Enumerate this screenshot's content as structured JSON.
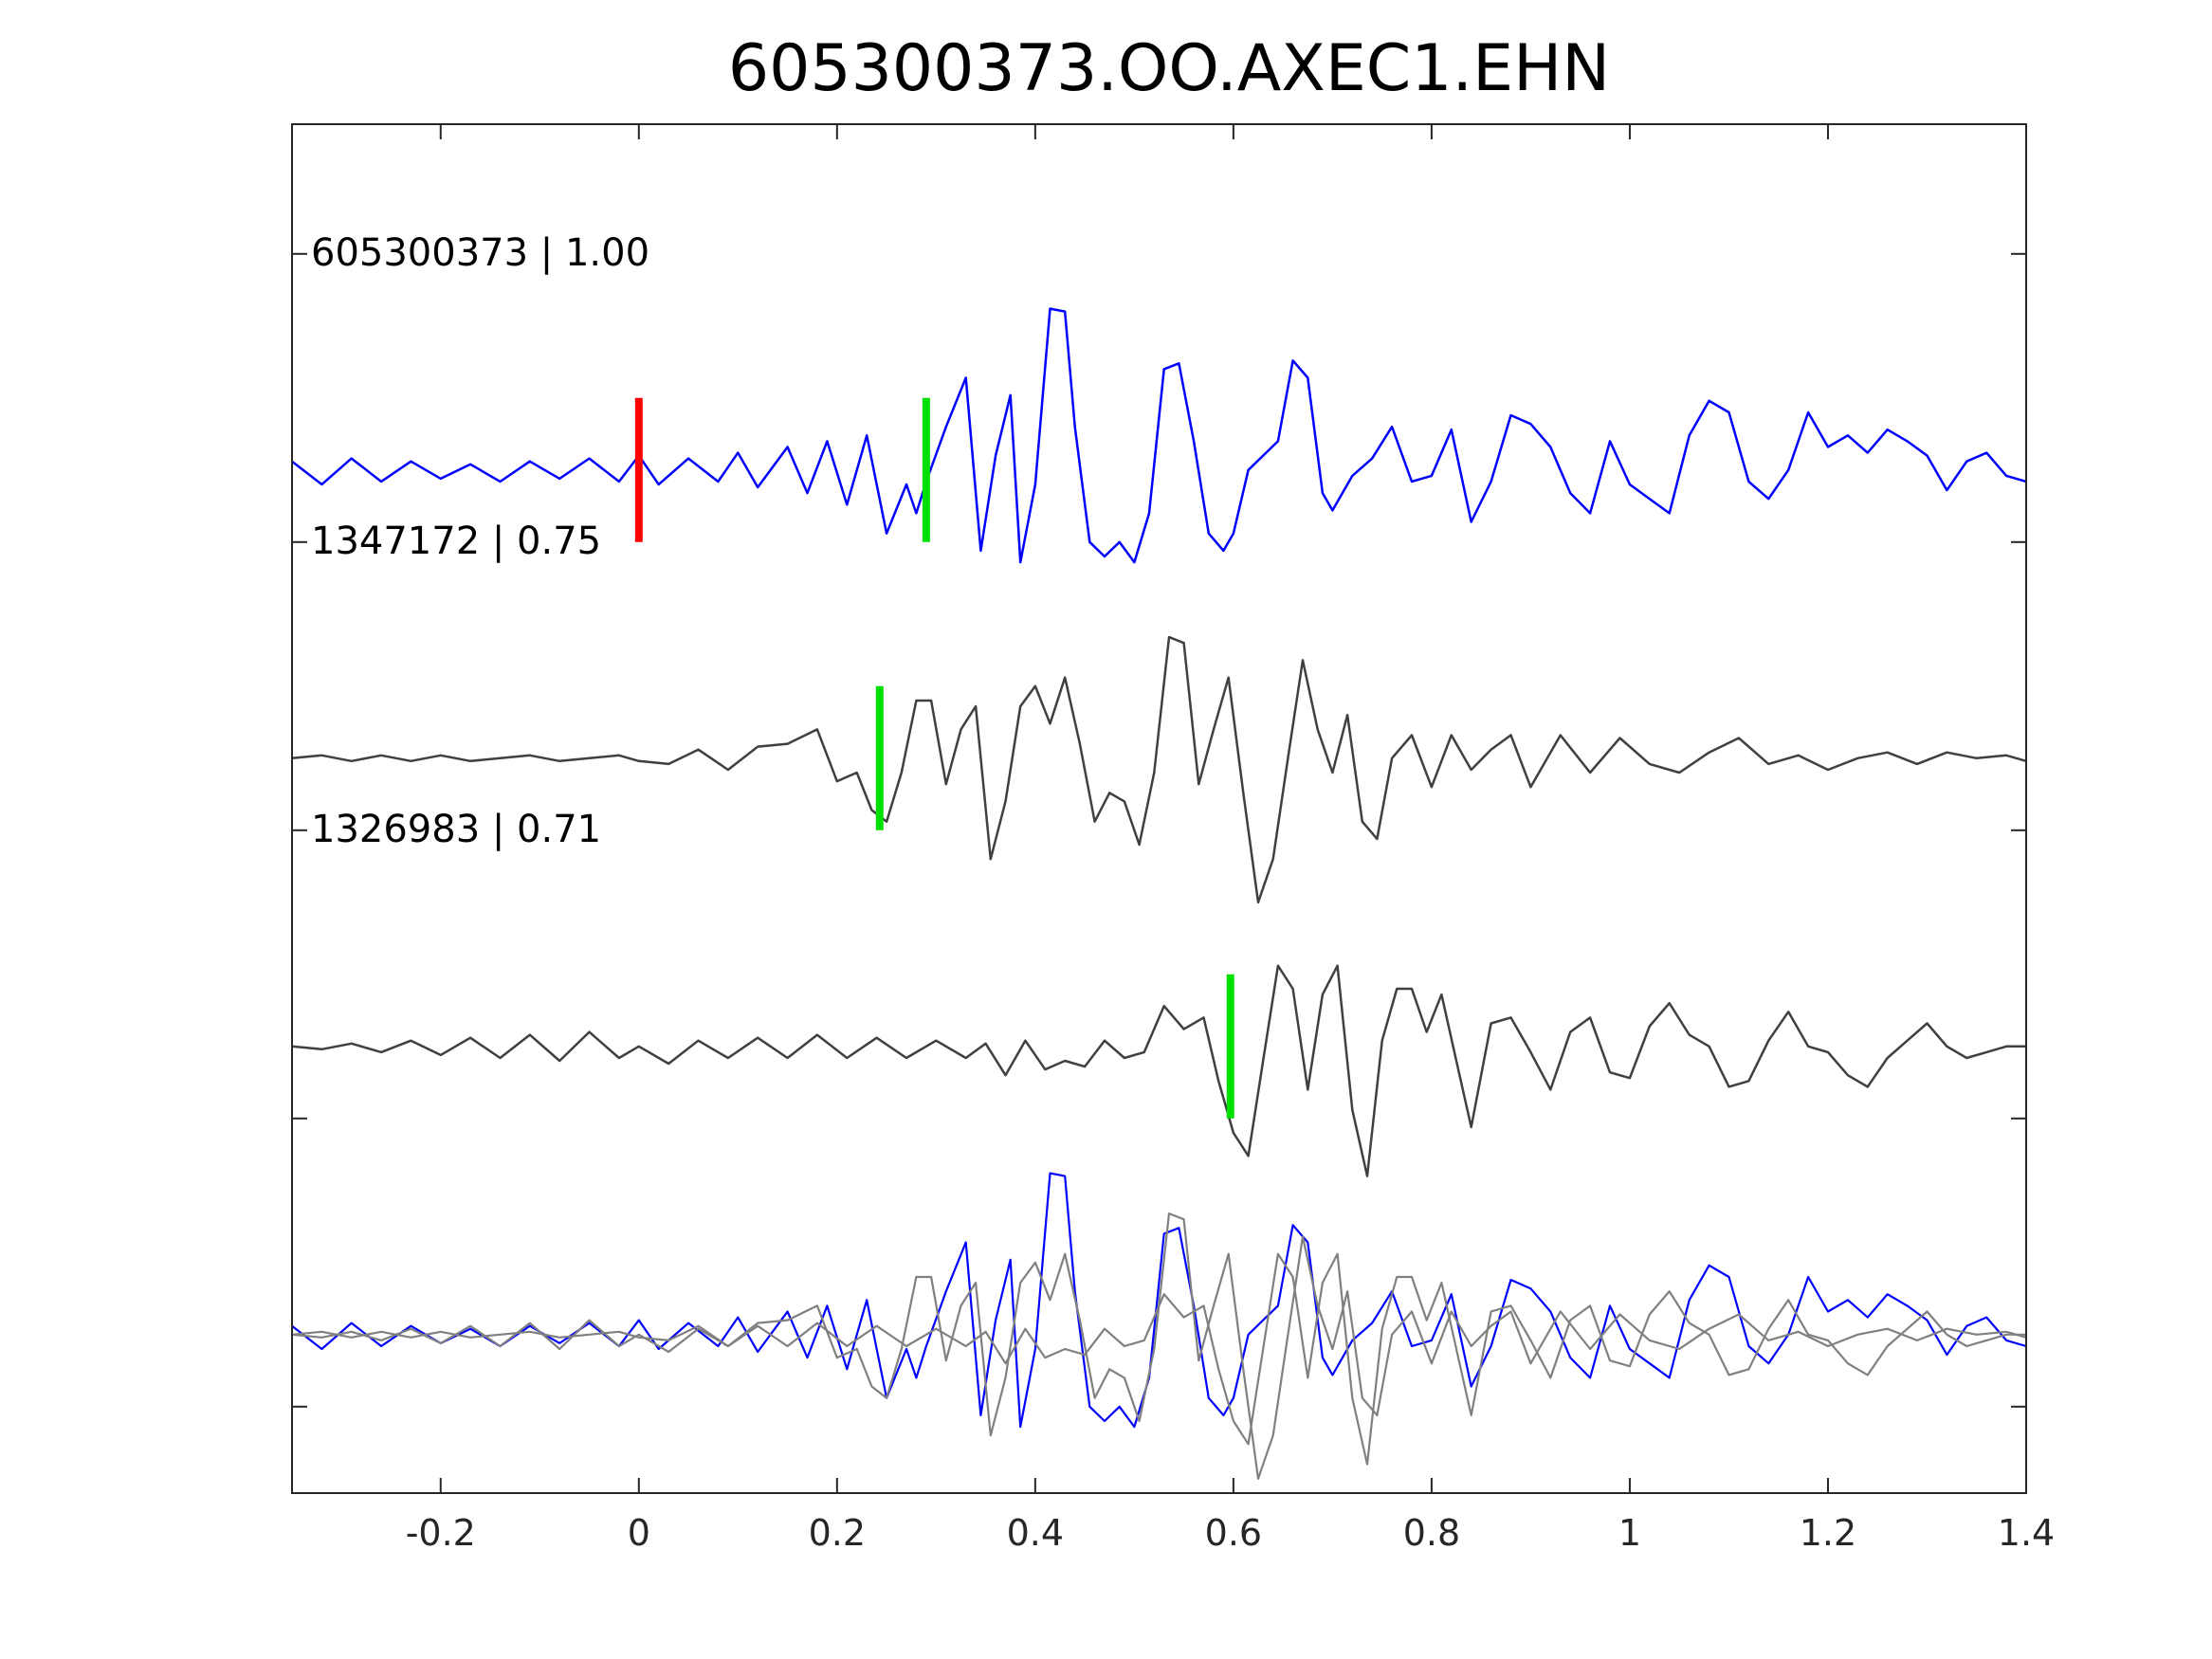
{
  "chart_data": {
    "type": "line",
    "title": "605300373.OO.AXEC1.EHN",
    "xlabel": "",
    "ylabel": "",
    "xlim": [
      -0.35,
      1.4
    ],
    "ylim": [
      0.45,
      5.2
    ],
    "xticks": [
      -0.2,
      0,
      0.2,
      0.4,
      0.6,
      0.8,
      1,
      1.2,
      1.4
    ],
    "xtick_labels": [
      "-0.2",
      "0",
      "0.2",
      "0.4",
      "0.6",
      "0.8",
      "1",
      "1.2",
      "1.4"
    ],
    "yticks": [
      0.75,
      1.75,
      2.75,
      3.75,
      4.75
    ],
    "grid": false,
    "colors": {
      "reference": "#0000ff",
      "match": "#404040",
      "overlay_match": "#808080",
      "origin_marker": "#ff0000",
      "pick_marker": "#00e000"
    },
    "series": [
      {
        "label": "605300373 | 1.00",
        "baseline": 4.0,
        "color": "#0000ff",
        "pick": 0.29,
        "origin_marker": 0.0,
        "x": [
          -0.35,
          -0.32,
          -0.29,
          -0.26,
          -0.23,
          -0.2,
          -0.17,
          -0.14,
          -0.11,
          -0.08,
          -0.05,
          -0.02,
          0.0,
          0.02,
          0.05,
          0.08,
          0.1,
          0.12,
          0.15,
          0.17,
          0.19,
          0.21,
          0.23,
          0.25,
          0.27,
          0.28,
          0.29,
          0.31,
          0.33,
          0.345,
          0.36,
          0.375,
          0.385,
          0.4,
          0.415,
          0.43,
          0.44,
          0.455,
          0.47,
          0.485,
          0.5,
          0.515,
          0.53,
          0.545,
          0.56,
          0.575,
          0.59,
          0.6,
          0.615,
          0.63,
          0.645,
          0.66,
          0.675,
          0.69,
          0.7,
          0.72,
          0.74,
          0.76,
          0.78,
          0.8,
          0.82,
          0.84,
          0.86,
          0.88,
          0.9,
          0.92,
          0.94,
          0.96,
          0.98,
          1.0,
          1.02,
          1.04,
          1.06,
          1.08,
          1.1,
          1.12,
          1.14,
          1.16,
          1.18,
          1.2,
          1.22,
          1.24,
          1.26,
          1.28,
          1.3,
          1.32,
          1.34,
          1.36,
          1.38,
          1.4
        ],
        "y": [
          4.03,
          3.95,
          4.04,
          3.96,
          4.03,
          3.97,
          4.02,
          3.96,
          4.03,
          3.97,
          4.04,
          3.96,
          4.05,
          3.95,
          4.04,
          3.96,
          4.06,
          3.94,
          4.08,
          3.92,
          4.1,
          3.88,
          4.12,
          3.78,
          3.95,
          3.85,
          3.96,
          4.15,
          4.32,
          3.72,
          4.05,
          4.26,
          3.68,
          3.95,
          4.56,
          4.55,
          4.15,
          3.75,
          3.7,
          3.75,
          3.68,
          3.85,
          4.35,
          4.37,
          4.1,
          3.78,
          3.72,
          3.78,
          4.0,
          4.05,
          4.1,
          4.38,
          4.32,
          3.92,
          3.86,
          3.98,
          4.04,
          4.15,
          3.96,
          3.98,
          4.14,
          3.82,
          3.96,
          4.19,
          4.16,
          4.08,
          3.92,
          3.85,
          4.1,
          3.95,
          3.9,
          3.85,
          4.12,
          4.24,
          4.2,
          3.96,
          3.9,
          4.0,
          4.2,
          4.08,
          4.12,
          4.06,
          4.14,
          4.1,
          4.05,
          3.93,
          4.03,
          4.06,
          3.98,
          3.96
        ]
      },
      {
        "label": "1347172 | 0.75",
        "baseline": 3.0,
        "color": "#404040",
        "pick": 0.243,
        "x": [
          -0.35,
          -0.32,
          -0.29,
          -0.26,
          -0.23,
          -0.2,
          -0.17,
          -0.14,
          -0.11,
          -0.08,
          -0.05,
          -0.02,
          0.0,
          0.03,
          0.06,
          0.09,
          0.12,
          0.15,
          0.18,
          0.2,
          0.22,
          0.235,
          0.25,
          0.265,
          0.28,
          0.295,
          0.31,
          0.325,
          0.34,
          0.355,
          0.37,
          0.385,
          0.4,
          0.415,
          0.43,
          0.445,
          0.46,
          0.475,
          0.49,
          0.505,
          0.52,
          0.535,
          0.55,
          0.565,
          0.58,
          0.595,
          0.61,
          0.625,
          0.64,
          0.655,
          0.67,
          0.685,
          0.7,
          0.715,
          0.73,
          0.745,
          0.76,
          0.78,
          0.8,
          0.82,
          0.84,
          0.86,
          0.88,
          0.9,
          0.93,
          0.96,
          0.99,
          1.02,
          1.05,
          1.08,
          1.11,
          1.14,
          1.17,
          1.2,
          1.23,
          1.26,
          1.29,
          1.32,
          1.35,
          1.38,
          1.4
        ],
        "y": [
          3.0,
          3.01,
          2.99,
          3.01,
          2.99,
          3.01,
          2.99,
          3.0,
          3.01,
          2.99,
          3.0,
          3.01,
          2.99,
          2.98,
          3.03,
          2.96,
          3.04,
          3.05,
          3.1,
          2.92,
          2.95,
          2.82,
          2.78,
          2.95,
          3.2,
          3.2,
          2.91,
          3.1,
          3.18,
          2.65,
          2.85,
          3.18,
          3.25,
          3.12,
          3.28,
          3.05,
          2.78,
          2.88,
          2.85,
          2.7,
          2.95,
          3.42,
          3.4,
          2.91,
          3.1,
          3.28,
          2.88,
          2.5,
          2.65,
          3.0,
          3.34,
          3.1,
          2.95,
          3.15,
          2.78,
          2.72,
          3.0,
          3.08,
          2.9,
          3.08,
          2.96,
          3.03,
          3.08,
          2.9,
          3.08,
          2.95,
          3.07,
          2.98,
          2.95,
          3.02,
          3.07,
          2.98,
          3.01,
          2.96,
          3.0,
          3.02,
          2.98,
          3.02,
          3.0,
          3.01,
          2.99
        ]
      },
      {
        "label": "1326983 | 0.71",
        "baseline": 2.0,
        "color": "#404040",
        "pick": 0.597,
        "x": [
          -0.35,
          -0.32,
          -0.29,
          -0.26,
          -0.23,
          -0.2,
          -0.17,
          -0.14,
          -0.11,
          -0.08,
          -0.05,
          -0.02,
          0.0,
          0.03,
          0.06,
          0.09,
          0.12,
          0.15,
          0.18,
          0.21,
          0.24,
          0.27,
          0.3,
          0.33,
          0.35,
          0.37,
          0.39,
          0.41,
          0.43,
          0.45,
          0.47,
          0.49,
          0.51,
          0.53,
          0.55,
          0.57,
          0.585,
          0.6,
          0.615,
          0.63,
          0.645,
          0.66,
          0.675,
          0.69,
          0.705,
          0.72,
          0.735,
          0.75,
          0.765,
          0.78,
          0.795,
          0.81,
          0.825,
          0.84,
          0.86,
          0.88,
          0.9,
          0.92,
          0.94,
          0.96,
          0.98,
          1.0,
          1.02,
          1.04,
          1.06,
          1.08,
          1.1,
          1.12,
          1.14,
          1.16,
          1.18,
          1.2,
          1.22,
          1.24,
          1.26,
          1.28,
          1.3,
          1.32,
          1.34,
          1.36,
          1.38,
          1.4
        ],
        "y": [
          2.0,
          1.99,
          2.01,
          1.98,
          2.02,
          1.97,
          2.03,
          1.96,
          2.04,
          1.95,
          2.05,
          1.96,
          2.0,
          1.94,
          2.02,
          1.96,
          2.03,
          1.96,
          2.04,
          1.96,
          2.03,
          1.96,
          2.02,
          1.96,
          2.01,
          1.9,
          2.02,
          1.92,
          1.95,
          1.93,
          2.02,
          1.96,
          1.98,
          2.14,
          2.06,
          2.1,
          1.88,
          1.7,
          1.62,
          1.95,
          2.28,
          2.2,
          1.85,
          2.18,
          2.28,
          1.78,
          1.55,
          2.02,
          2.2,
          2.2,
          2.05,
          2.18,
          1.95,
          1.72,
          2.08,
          2.1,
          1.98,
          1.85,
          2.05,
          2.1,
          1.91,
          1.89,
          2.07,
          2.15,
          2.04,
          2.0,
          1.86,
          1.88,
          2.02,
          2.12,
          2.0,
          1.98,
          1.9,
          1.86,
          1.96,
          2.02,
          2.08,
          2.0,
          1.96,
          1.98,
          2.0,
          2.0
        ]
      },
      {
        "label": "",
        "baseline": 1.0,
        "color": "#0000ff",
        "overlay": true,
        "x": [
          -0.35,
          -0.32,
          -0.29,
          -0.26,
          -0.23,
          -0.2,
          -0.17,
          -0.14,
          -0.11,
          -0.08,
          -0.05,
          -0.02,
          0.0,
          0.02,
          0.05,
          0.08,
          0.1,
          0.12,
          0.15,
          0.17,
          0.19,
          0.21,
          0.23,
          0.25,
          0.27,
          0.28,
          0.29,
          0.31,
          0.33,
          0.345,
          0.36,
          0.375,
          0.385,
          0.4,
          0.415,
          0.43,
          0.44,
          0.455,
          0.47,
          0.485,
          0.5,
          0.515,
          0.53,
          0.545,
          0.56,
          0.575,
          0.59,
          0.6,
          0.615,
          0.63,
          0.645,
          0.66,
          0.675,
          0.69,
          0.7,
          0.72,
          0.74,
          0.76,
          0.78,
          0.8,
          0.82,
          0.84,
          0.86,
          0.88,
          0.9,
          0.92,
          0.94,
          0.96,
          0.98,
          1.0,
          1.02,
          1.04,
          1.06,
          1.08,
          1.1,
          1.12,
          1.14,
          1.16,
          1.18,
          1.2,
          1.22,
          1.24,
          1.26,
          1.28,
          1.3,
          1.32,
          1.34,
          1.36,
          1.38,
          1.4
        ],
        "y": [
          1.03,
          0.95,
          1.04,
          0.96,
          1.03,
          0.97,
          1.02,
          0.96,
          1.03,
          0.97,
          1.04,
          0.96,
          1.05,
          0.95,
          1.04,
          0.96,
          1.06,
          0.94,
          1.08,
          0.92,
          1.1,
          0.88,
          1.12,
          0.78,
          0.95,
          0.85,
          0.96,
          1.15,
          1.32,
          0.72,
          1.05,
          1.26,
          0.68,
          0.95,
          1.56,
          1.55,
          1.15,
          0.75,
          0.7,
          0.75,
          0.68,
          0.85,
          1.35,
          1.37,
          1.1,
          0.78,
          0.72,
          0.78,
          1.0,
          1.05,
          1.1,
          1.38,
          1.32,
          0.92,
          0.86,
          0.98,
          1.04,
          1.15,
          0.96,
          0.98,
          1.14,
          0.82,
          0.96,
          1.19,
          1.16,
          1.08,
          0.92,
          0.85,
          1.1,
          0.95,
          0.9,
          0.85,
          1.12,
          1.24,
          1.2,
          0.96,
          0.9,
          1.0,
          1.2,
          1.08,
          1.12,
          1.06,
          1.14,
          1.1,
          1.05,
          0.93,
          1.03,
          1.06,
          0.98,
          0.96
        ]
      },
      {
        "label": "",
        "baseline": 1.0,
        "color": "#808080",
        "overlay": true,
        "x": [
          -0.35,
          -0.32,
          -0.29,
          -0.26,
          -0.23,
          -0.2,
          -0.17,
          -0.14,
          -0.11,
          -0.08,
          -0.05,
          -0.02,
          0.0,
          0.03,
          0.06,
          0.09,
          0.12,
          0.15,
          0.18,
          0.2,
          0.22,
          0.235,
          0.25,
          0.265,
          0.28,
          0.295,
          0.31,
          0.325,
          0.34,
          0.355,
          0.37,
          0.385,
          0.4,
          0.415,
          0.43,
          0.445,
          0.46,
          0.475,
          0.49,
          0.505,
          0.52,
          0.535,
          0.55,
          0.565,
          0.58,
          0.595,
          0.61,
          0.625,
          0.64,
          0.655,
          0.67,
          0.685,
          0.7,
          0.715,
          0.73,
          0.745,
          0.76,
          0.78,
          0.8,
          0.82,
          0.84,
          0.86,
          0.88,
          0.9,
          0.93,
          0.96,
          0.99,
          1.02,
          1.05,
          1.08,
          1.11,
          1.14,
          1.17,
          1.2,
          1.23,
          1.26,
          1.29,
          1.32,
          1.35,
          1.38,
          1.4
        ],
        "y": [
          1.0,
          1.01,
          0.99,
          1.01,
          0.99,
          1.01,
          0.99,
          1.0,
          1.01,
          0.99,
          1.0,
          1.01,
          0.99,
          0.98,
          1.03,
          0.96,
          1.04,
          1.05,
          1.1,
          0.92,
          0.95,
          0.82,
          0.78,
          0.95,
          1.2,
          1.2,
          0.91,
          1.1,
          1.18,
          0.65,
          0.85,
          1.18,
          1.25,
          1.12,
          1.28,
          1.05,
          0.78,
          0.88,
          0.85,
          0.7,
          0.95,
          1.42,
          1.4,
          0.91,
          1.1,
          1.28,
          0.88,
          0.5,
          0.65,
          1.0,
          1.34,
          1.1,
          0.95,
          1.15,
          0.78,
          0.72,
          1.0,
          1.08,
          0.9,
          1.08,
          0.96,
          1.03,
          1.08,
          0.9,
          1.08,
          0.95,
          1.07,
          0.98,
          0.95,
          1.02,
          1.07,
          0.98,
          1.01,
          0.96,
          1.0,
          1.02,
          0.98,
          1.02,
          1.0,
          1.01,
          0.99
        ]
      },
      {
        "label": "",
        "baseline": 1.0,
        "color": "#808080",
        "overlay": true,
        "x": [
          -0.35,
          -0.32,
          -0.29,
          -0.26,
          -0.23,
          -0.2,
          -0.17,
          -0.14,
          -0.11,
          -0.08,
          -0.05,
          -0.02,
          0.0,
          0.03,
          0.06,
          0.09,
          0.12,
          0.15,
          0.18,
          0.21,
          0.24,
          0.27,
          0.3,
          0.33,
          0.35,
          0.37,
          0.39,
          0.41,
          0.43,
          0.45,
          0.47,
          0.49,
          0.51,
          0.53,
          0.55,
          0.57,
          0.585,
          0.6,
          0.615,
          0.63,
          0.645,
          0.66,
          0.675,
          0.69,
          0.705,
          0.72,
          0.735,
          0.75,
          0.765,
          0.78,
          0.795,
          0.81,
          0.825,
          0.84,
          0.86,
          0.88,
          0.9,
          0.92,
          0.94,
          0.96,
          0.98,
          1.0,
          1.02,
          1.04,
          1.06,
          1.08,
          1.1,
          1.12,
          1.14,
          1.16,
          1.18,
          1.2,
          1.22,
          1.24,
          1.26,
          1.28,
          1.3,
          1.32,
          1.34,
          1.36,
          1.38,
          1.4
        ],
        "y": [
          1.0,
          0.99,
          1.01,
          0.98,
          1.02,
          0.97,
          1.03,
          0.96,
          1.04,
          0.95,
          1.05,
          0.96,
          1.0,
          0.94,
          1.02,
          0.96,
          1.03,
          0.96,
          1.04,
          0.96,
          1.03,
          0.96,
          1.02,
          0.96,
          1.01,
          0.9,
          1.02,
          0.92,
          0.95,
          0.93,
          1.02,
          0.96,
          0.98,
          1.14,
          1.06,
          1.1,
          0.88,
          0.7,
          0.62,
          0.95,
          1.28,
          1.2,
          0.85,
          1.18,
          1.28,
          0.78,
          0.55,
          1.02,
          1.2,
          1.2,
          1.05,
          1.18,
          0.95,
          0.72,
          1.08,
          1.1,
          0.98,
          0.85,
          1.05,
          1.1,
          0.91,
          0.89,
          1.07,
          1.15,
          1.04,
          1.0,
          0.86,
          0.88,
          1.02,
          1.12,
          1.0,
          0.98,
          0.9,
          0.86,
          0.96,
          1.02,
          1.08,
          1.0,
          0.96,
          0.98,
          1.0,
          1.0
        ]
      }
    ]
  }
}
